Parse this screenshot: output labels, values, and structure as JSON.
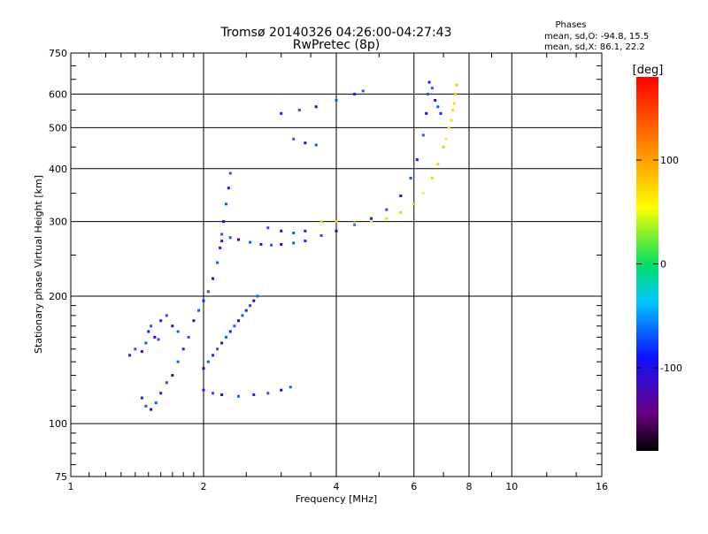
{
  "chart_data": {
    "type": "scatter",
    "title": "Tromsø 20140326 04:26:00-04:27:43",
    "subtitle": "RwPretec (8p)",
    "xlabel": "Frequency [MHz]",
    "ylabel": "Stationary phase Virtual Height [km]",
    "x_scale": "log",
    "y_scale": "log",
    "xlim": [
      1,
      16
    ],
    "ylim": [
      75,
      750
    ],
    "x_ticks": [
      1,
      2,
      4,
      6,
      8,
      10,
      16
    ],
    "y_ticks": [
      75,
      100,
      200,
      300,
      400,
      500,
      600,
      750
    ],
    "grid": true,
    "phases_box": {
      "title": "Phases",
      "line1": "mean, sd,O: -94.8, 15.5",
      "line2": "mean, sd,X: 86.1, 22.2"
    },
    "colorbar": {
      "label": "[deg]",
      "range": [
        -180,
        180
      ],
      "ticks": [
        100,
        0,
        -100
      ],
      "colormap": "rainbow (black-purple-blue-cyan-green-yellow-orange-red)"
    },
    "series": [
      {
        "description_mode": "O",
        "phase_mean": -94.8,
        "points": [
          [
            1.36,
            145
          ],
          [
            1.4,
            150
          ],
          [
            1.45,
            148
          ],
          [
            1.48,
            155
          ],
          [
            1.5,
            165
          ],
          [
            1.52,
            170
          ],
          [
            1.55,
            160
          ],
          [
            1.58,
            158
          ],
          [
            1.6,
            175
          ],
          [
            1.65,
            180
          ],
          [
            1.7,
            170
          ],
          [
            1.75,
            165
          ],
          [
            1.45,
            115
          ],
          [
            1.48,
            110
          ],
          [
            1.52,
            108
          ],
          [
            1.56,
            112
          ],
          [
            1.6,
            118
          ],
          [
            1.65,
            125
          ],
          [
            1.7,
            130
          ],
          [
            1.75,
            140
          ],
          [
            1.8,
            150
          ],
          [
            1.85,
            160
          ],
          [
            1.9,
            175
          ],
          [
            1.95,
            185
          ],
          [
            2.0,
            195
          ],
          [
            2.05,
            205
          ],
          [
            2.1,
            220
          ],
          [
            2.15,
            240
          ],
          [
            2.18,
            260
          ],
          [
            2.2,
            280
          ],
          [
            2.22,
            300
          ],
          [
            2.25,
            330
          ],
          [
            2.28,
            360
          ],
          [
            2.3,
            390
          ],
          [
            2.0,
            135
          ],
          [
            2.05,
            140
          ],
          [
            2.1,
            145
          ],
          [
            2.15,
            150
          ],
          [
            2.2,
            155
          ],
          [
            2.25,
            160
          ],
          [
            2.3,
            165
          ],
          [
            2.35,
            170
          ],
          [
            2.4,
            175
          ],
          [
            2.45,
            180
          ],
          [
            2.5,
            185
          ],
          [
            2.55,
            190
          ],
          [
            2.6,
            195
          ],
          [
            2.65,
            200
          ],
          [
            2.0,
            120
          ],
          [
            2.1,
            118
          ],
          [
            2.2,
            117
          ],
          [
            2.4,
            116
          ],
          [
            2.6,
            117
          ],
          [
            2.8,
            118
          ],
          [
            3.0,
            120
          ],
          [
            3.15,
            122
          ],
          [
            2.2,
            270
          ],
          [
            2.3,
            275
          ],
          [
            2.4,
            272
          ],
          [
            2.55,
            268
          ],
          [
            2.7,
            265
          ],
          [
            2.85,
            264
          ],
          [
            3.0,
            265
          ],
          [
            3.2,
            267
          ],
          [
            3.4,
            270
          ],
          [
            3.7,
            278
          ],
          [
            4.0,
            285
          ],
          [
            4.4,
            295
          ],
          [
            4.8,
            305
          ],
          [
            5.2,
            320
          ],
          [
            5.6,
            345
          ],
          [
            5.9,
            380
          ],
          [
            6.1,
            420
          ],
          [
            6.3,
            480
          ],
          [
            6.4,
            540
          ],
          [
            6.45,
            600
          ],
          [
            6.5,
            640
          ],
          [
            6.6,
            620
          ],
          [
            6.7,
            580
          ],
          [
            6.8,
            560
          ],
          [
            6.9,
            540
          ],
          [
            2.8,
            290
          ],
          [
            3.0,
            285
          ],
          [
            3.2,
            282
          ],
          [
            3.4,
            285
          ],
          [
            3.2,
            470
          ],
          [
            3.4,
            460
          ],
          [
            3.6,
            455
          ],
          [
            3.0,
            540
          ],
          [
            3.3,
            550
          ],
          [
            3.6,
            560
          ],
          [
            4.0,
            580
          ],
          [
            4.4,
            600
          ],
          [
            4.6,
            610
          ]
        ]
      },
      {
        "description_mode": "X",
        "phase_mean": 86.1,
        "points": [
          [
            3.7,
            300
          ],
          [
            4.0,
            300
          ],
          [
            4.4,
            298
          ],
          [
            4.8,
            300
          ],
          [
            5.2,
            305
          ],
          [
            5.6,
            315
          ],
          [
            6.0,
            330
          ],
          [
            6.3,
            350
          ],
          [
            6.6,
            380
          ],
          [
            6.8,
            410
          ],
          [
            7.0,
            450
          ],
          [
            7.2,
            500
          ],
          [
            7.35,
            550
          ],
          [
            7.45,
            600
          ],
          [
            7.5,
            630
          ],
          [
            7.1,
            470
          ],
          [
            7.3,
            520
          ],
          [
            7.4,
            570
          ]
        ]
      }
    ]
  }
}
